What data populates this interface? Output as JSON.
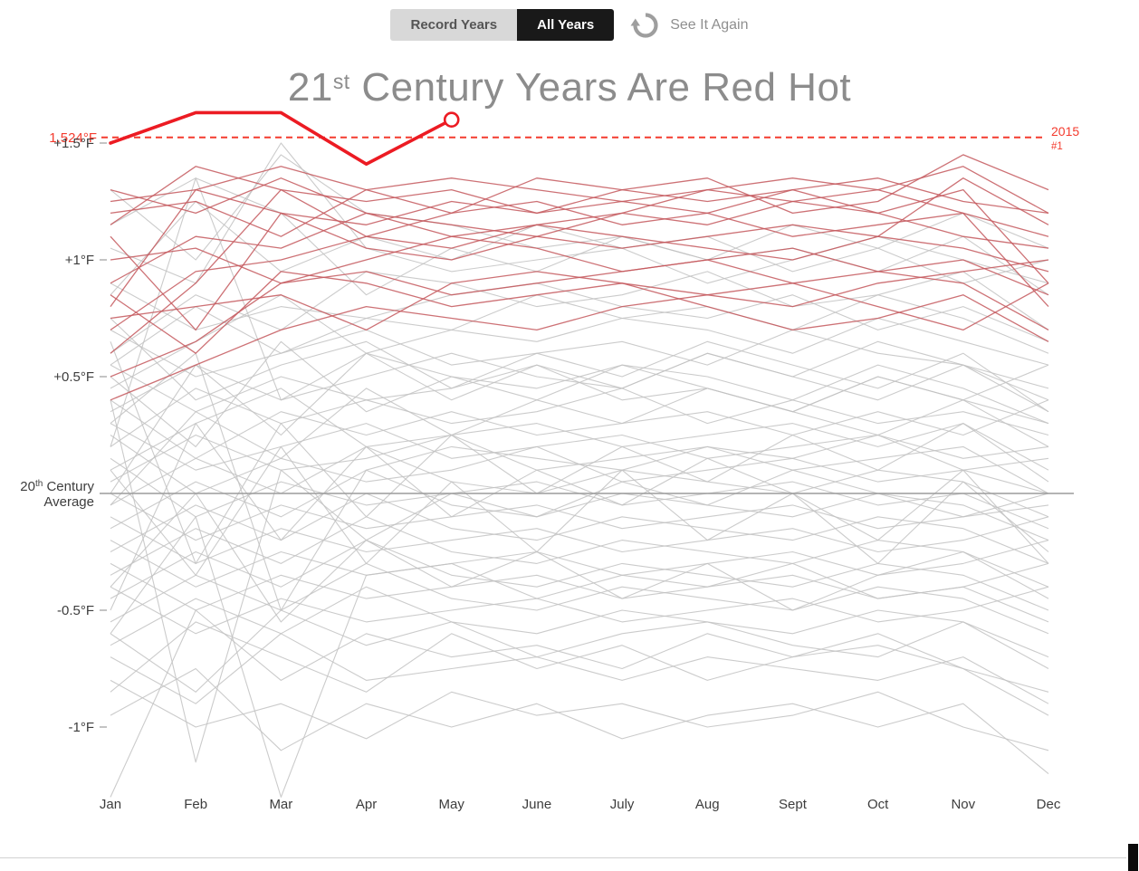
{
  "toolbar": {
    "record_years": "Record Years",
    "all_years": "All Years",
    "see_it_again": "See It Again"
  },
  "title": {
    "num": "21",
    "sup": "st",
    "rest": " Century Years Are Red Hot"
  },
  "chart_data": {
    "type": "line",
    "title": "21st Century Years Are Red Hot",
    "xlabel": "",
    "ylabel": "",
    "grid": false,
    "legend": "none",
    "x": [
      "Jan",
      "Feb",
      "Mar",
      "Apr",
      "May",
      "June",
      "July",
      "Aug",
      "Sept",
      "Oct",
      "Nov",
      "Dec"
    ],
    "ylim": [
      -1.35,
      1.7
    ],
    "y_ticks": [
      {
        "label": "+1.5°F",
        "value": 1.5
      },
      {
        "label": "+1°F",
        "value": 1.0
      },
      {
        "label": "+0.5°F",
        "value": 0.5
      },
      {
        "label": "-0.5°F",
        "value": -0.5
      },
      {
        "label": "-1°F",
        "value": -1.0
      }
    ],
    "baseline": {
      "value": 0,
      "num": "20",
      "sup": "th",
      "rest": " Century",
      "line2": "Average"
    },
    "record_line": {
      "value": 1.524,
      "label": "1.524°F",
      "right_label": "2015",
      "right_sublabel": "#1",
      "color": "#f43b2e"
    },
    "highlight_series": {
      "name": "2015",
      "rank": "#1",
      "color": "#ec1b23",
      "values": [
        1.5,
        1.63,
        1.63,
        1.41,
        1.6
      ]
    },
    "series_21st_century": {
      "color": "#c4585d",
      "lines": [
        [
          0.8,
          1.3,
          1.4,
          1.3,
          1.35,
          1.3,
          1.25,
          1.3,
          1.35,
          1.3,
          1.4,
          1.2
        ],
        [
          1.2,
          1.25,
          1.1,
          1.3,
          1.2,
          1.35,
          1.3,
          1.25,
          1.3,
          1.2,
          1.3,
          0.9
        ],
        [
          1.1,
          0.7,
          1.2,
          1.15,
          1.25,
          1.2,
          1.3,
          1.35,
          1.2,
          1.25,
          1.45,
          1.3
        ],
        [
          0.6,
          0.9,
          1.3,
          1.1,
          1.2,
          1.25,
          1.15,
          1.2,
          1.1,
          1.15,
          1.2,
          1.1
        ],
        [
          1.3,
          1.2,
          1.35,
          1.2,
          1.1,
          1.15,
          1.2,
          1.3,
          1.25,
          1.2,
          1.1,
          1.05
        ],
        [
          0.9,
          1.1,
          1.05,
          1.2,
          1.15,
          1.1,
          1.2,
          1.15,
          1.25,
          1.3,
          1.2,
          0.8
        ],
        [
          1.25,
          1.3,
          1.2,
          1.05,
          1.0,
          1.1,
          1.05,
          1.1,
          1.15,
          1.1,
          1.35,
          1.15
        ],
        [
          0.7,
          0.95,
          1.0,
          1.1,
          1.05,
          1.15,
          1.1,
          1.05,
          1.0,
          1.1,
          1.05,
          0.95
        ],
        [
          1.0,
          1.05,
          0.9,
          1.0,
          1.1,
          1.05,
          0.95,
          1.0,
          1.05,
          0.95,
          1.0,
          0.85
        ],
        [
          0.5,
          0.65,
          0.9,
          0.95,
          0.85,
          0.9,
          0.95,
          1.0,
          0.9,
          0.95,
          0.9,
          0.7
        ],
        [
          0.85,
          0.6,
          0.95,
          0.9,
          0.8,
          0.85,
          0.9,
          0.85,
          0.8,
          0.9,
          0.95,
          1.0
        ],
        [
          0.4,
          0.55,
          0.7,
          0.8,
          0.75,
          0.7,
          0.8,
          0.85,
          0.9,
          0.8,
          0.7,
          0.9
        ],
        [
          1.15,
          1.4,
          1.3,
          1.25,
          1.3,
          1.2,
          1.25,
          1.2,
          1.3,
          1.35,
          1.25,
          1.2
        ],
        [
          0.75,
          0.8,
          0.85,
          0.7,
          0.9,
          0.95,
          0.9,
          0.8,
          0.7,
          0.75,
          0.85,
          0.65
        ]
      ]
    },
    "series_20th_century": {
      "color": "#c2c2c2",
      "lines": [
        [
          1.3,
          1.0,
          1.45,
          1.2,
          1.15,
          1.05,
          1.1,
          1.0,
          1.05,
          0.95,
          1.1,
          0.85
        ],
        [
          0.85,
          1.25,
          0.95,
          1.1,
          1.0,
          1.15,
          1.05,
          1.1,
          0.95,
          1.05,
          0.9,
          1.0
        ],
        [
          1.05,
          0.9,
          1.5,
          1.05,
          0.95,
          1.0,
          1.05,
          0.9,
          1.0,
          1.1,
          1.0,
          0.9
        ],
        [
          1.15,
          1.35,
          1.2,
          0.85,
          1.05,
          0.95,
          1.1,
          1.0,
          1.15,
          1.05,
          1.2,
          1.05
        ],
        [
          0.6,
          0.85,
          0.7,
          0.95,
          0.9,
          0.8,
          0.85,
          0.95,
          0.8,
          0.85,
          0.95,
          0.7
        ],
        [
          0.9,
          0.7,
          0.8,
          0.75,
          0.85,
          0.9,
          0.8,
          0.75,
          0.85,
          0.7,
          0.8,
          0.65
        ],
        [
          0.45,
          0.65,
          0.85,
          0.6,
          0.7,
          0.65,
          0.75,
          0.7,
          0.6,
          0.75,
          0.65,
          0.55
        ],
        [
          0.7,
          0.5,
          0.6,
          0.7,
          0.55,
          0.6,
          0.65,
          0.55,
          0.7,
          0.6,
          0.55,
          0.45
        ],
        [
          0.55,
          0.8,
          0.6,
          0.75,
          0.7,
          0.85,
          0.75,
          0.8,
          0.7,
          0.85,
          0.75,
          0.6
        ],
        [
          0.35,
          0.55,
          0.4,
          0.5,
          0.6,
          0.5,
          0.45,
          0.6,
          0.5,
          0.4,
          0.55,
          0.35
        ],
        [
          0.55,
          0.35,
          0.5,
          0.4,
          0.45,
          0.55,
          0.4,
          0.45,
          0.35,
          0.5,
          0.4,
          0.3
        ],
        [
          0.75,
          0.4,
          0.55,
          0.65,
          0.45,
          0.6,
          0.5,
          0.65,
          0.55,
          0.45,
          0.6,
          0.35
        ],
        [
          0.2,
          0.45,
          0.3,
          0.4,
          0.3,
          0.35,
          0.45,
          0.3,
          0.4,
          0.3,
          0.35,
          0.25
        ],
        [
          0.4,
          0.15,
          0.35,
          0.25,
          0.35,
          0.25,
          0.3,
          0.35,
          0.25,
          0.35,
          0.25,
          0.4
        ],
        [
          0.5,
          0.2,
          0.65,
          0.35,
          0.5,
          0.4,
          0.55,
          0.45,
          0.35,
          0.5,
          0.4,
          0.55
        ],
        [
          0.1,
          0.3,
          0.45,
          0.2,
          0.25,
          0.3,
          0.2,
          0.25,
          0.3,
          0.2,
          0.3,
          0.1
        ],
        [
          0.3,
          0.1,
          0.2,
          0.3,
          0.15,
          0.2,
          0.25,
          0.15,
          0.2,
          0.25,
          0.15,
          0.2
        ],
        [
          0.05,
          0.25,
          0.1,
          0.15,
          0.25,
          0.1,
          0.15,
          0.2,
          0.1,
          0.15,
          0.2,
          0.0
        ],
        [
          0.25,
          0.0,
          0.15,
          0.05,
          0.1,
          0.2,
          0.05,
          0.1,
          0.15,
          0.05,
          0.1,
          0.15
        ],
        [
          0.0,
          0.55,
          0.25,
          0.6,
          0.4,
          0.55,
          0.45,
          0.6,
          0.5,
          0.65,
          0.55,
          0.4
        ],
        [
          -0.05,
          0.15,
          0.0,
          0.2,
          0.05,
          0.0,
          0.1,
          0.05,
          0.0,
          0.1,
          0.05,
          -0.1
        ],
        [
          0.15,
          -0.1,
          0.05,
          -0.05,
          0.0,
          0.05,
          -0.05,
          0.0,
          0.05,
          -0.05,
          0.0,
          -0.15
        ],
        [
          -0.15,
          0.05,
          -0.1,
          0.1,
          -0.05,
          -0.1,
          0.0,
          -0.05,
          -0.1,
          0.0,
          -0.05,
          -0.2
        ],
        [
          0.0,
          -0.2,
          -0.05,
          -0.15,
          -0.1,
          -0.05,
          -0.15,
          -0.1,
          -0.05,
          -0.15,
          -0.1,
          0.0
        ],
        [
          -0.05,
          0.35,
          0.15,
          0.45,
          0.25,
          0.4,
          0.3,
          0.45,
          0.35,
          0.25,
          0.4,
          0.2
        ],
        [
          -0.25,
          -0.05,
          -0.2,
          0.0,
          -0.15,
          -0.2,
          -0.1,
          -0.15,
          -0.2,
          -0.1,
          -0.15,
          -0.3
        ],
        [
          -0.1,
          -0.3,
          -0.15,
          -0.25,
          -0.2,
          -0.15,
          -0.25,
          -0.2,
          -0.15,
          -0.25,
          -0.2,
          -0.1
        ],
        [
          -0.35,
          -0.15,
          -0.3,
          -0.1,
          -0.25,
          -0.3,
          -0.2,
          -0.25,
          -0.3,
          -0.2,
          -0.25,
          -0.4
        ],
        [
          -0.2,
          -0.4,
          -0.25,
          -0.35,
          -0.3,
          -0.25,
          -0.35,
          -0.3,
          -0.25,
          -0.35,
          -0.3,
          -0.2
        ],
        [
          -0.45,
          -0.25,
          -0.4,
          -0.2,
          -0.35,
          -0.4,
          -0.3,
          -0.35,
          -0.4,
          -0.3,
          -0.35,
          -0.5
        ],
        [
          -0.3,
          -0.5,
          -0.35,
          -0.45,
          -0.4,
          -0.35,
          -0.45,
          -0.4,
          -0.35,
          -0.45,
          -0.4,
          -0.3
        ],
        [
          -0.4,
          0.0,
          -0.55,
          -0.2,
          -0.4,
          -0.25,
          -0.45,
          -0.3,
          -0.5,
          -0.35,
          -0.25,
          -0.45
        ],
        [
          -0.55,
          -0.35,
          -0.5,
          -0.3,
          -0.45,
          -0.5,
          -0.4,
          -0.45,
          -0.5,
          -0.4,
          -0.45,
          -0.6
        ],
        [
          -0.4,
          -0.6,
          -0.45,
          -0.55,
          -0.5,
          -0.45,
          -0.55,
          -0.5,
          -0.45,
          -0.55,
          -0.5,
          -0.4
        ],
        [
          0.1,
          -0.35,
          0.2,
          -0.3,
          0.05,
          -0.25,
          0.1,
          -0.2,
          0.0,
          -0.3,
          0.05,
          -0.25
        ],
        [
          -0.65,
          -0.45,
          -0.6,
          -0.4,
          -0.55,
          -0.6,
          -0.5,
          -0.55,
          -0.6,
          -0.5,
          -0.55,
          -0.7
        ],
        [
          -0.6,
          -0.85,
          -0.5,
          -0.65,
          -0.55,
          -0.7,
          -0.6,
          -0.55,
          -0.65,
          -0.7,
          -0.55,
          -0.75
        ],
        [
          -0.85,
          -0.55,
          -0.7,
          -0.85,
          -0.6,
          -0.75,
          -0.65,
          -0.8,
          -0.7,
          -0.6,
          -0.75,
          -0.95
        ],
        [
          -0.7,
          -0.9,
          -0.6,
          -0.8,
          -0.75,
          -0.7,
          -0.8,
          -0.7,
          -0.75,
          -0.8,
          -0.7,
          -0.9
        ],
        [
          -0.8,
          -1.0,
          -0.9,
          -1.05,
          -0.85,
          -0.95,
          -0.9,
          -1.0,
          -0.95,
          -0.85,
          -1.0,
          -1.1
        ],
        [
          -0.95,
          -0.75,
          -1.1,
          -0.9,
          -1.0,
          -0.9,
          -1.05,
          -0.95,
          -0.9,
          -1.0,
          -0.9,
          -1.2
        ],
        [
          0.4,
          -1.15,
          0.1,
          -0.2,
          0.0,
          -0.1,
          0.05,
          -0.05,
          0.1,
          0.0,
          -0.1,
          -0.05
        ],
        [
          -0.6,
          -0.1,
          -1.3,
          -0.35,
          -0.3,
          -0.45,
          -0.35,
          -0.4,
          -0.3,
          -0.45,
          -0.4,
          -0.55
        ],
        [
          -1.3,
          -0.5,
          -0.8,
          -0.6,
          -0.7,
          -0.65,
          -0.75,
          -0.6,
          -0.7,
          -0.65,
          -0.75,
          -0.85
        ],
        [
          0.2,
          1.35,
          0.4,
          0.6,
          0.5,
          0.45,
          0.55,
          0.5,
          0.4,
          0.55,
          0.45,
          0.3
        ],
        [
          0.3,
          0.6,
          -0.5,
          0.1,
          0.2,
          0.15,
          0.1,
          0.2,
          0.15,
          0.25,
          0.1,
          0.0
        ],
        [
          -0.5,
          0.3,
          -0.2,
          0.2,
          -0.1,
          0.1,
          -0.05,
          0.15,
          0.0,
          -0.2,
          0.1,
          -0.3
        ],
        [
          0.65,
          -0.3,
          0.3,
          -0.1,
          0.25,
          0.0,
          0.2,
          0.05,
          0.25,
          0.1,
          0.3,
          0.05
        ]
      ]
    }
  }
}
